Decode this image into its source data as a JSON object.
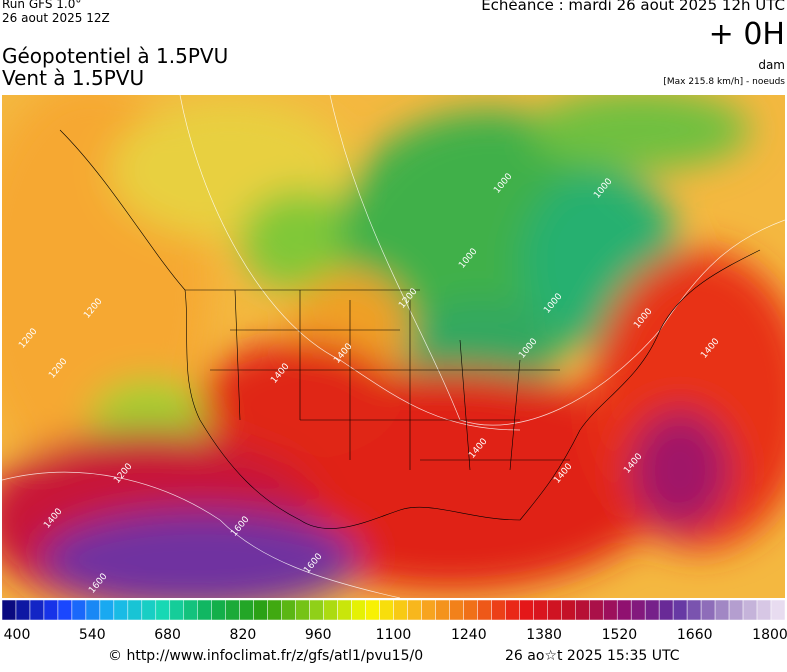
{
  "header": {
    "run": "Run GFS 1.0°",
    "run_date": "26 aout 2025 12Z",
    "title_line1": "Géopotentiel à 1.5PVU",
    "title_line2": "Vent à 1.5PVU",
    "valid": "Echéance : mardi 26 aout 2025 12h UTC",
    "lead": "+ 0H",
    "unit": "dam",
    "wind_note": "[Max 215.8 km/h] - noeuds"
  },
  "map": {
    "contour_labels": [
      "1000",
      "1000",
      "1000",
      "1000",
      "1000",
      "1000",
      "1200",
      "1200",
      "1200",
      "1200",
      "1200",
      "1400",
      "1400",
      "1400",
      "1400",
      "1400",
      "1400",
      "1400",
      "1600",
      "1600",
      "1600"
    ]
  },
  "colorbar": {
    "labels": [
      400,
      540,
      680,
      820,
      960,
      1100,
      1240,
      1380,
      1520,
      1660,
      1800
    ],
    "stops": [
      "#0a0a80",
      "#1a3cff",
      "#19b4f0",
      "#17d8b4",
      "#10b050",
      "#2ea010",
      "#90d018",
      "#f8f800",
      "#f8b020",
      "#f07018",
      "#e81818",
      "#c01028",
      "#901070",
      "#6030a0",
      "#a890c8",
      "#e8dcf0"
    ]
  },
  "footer": {
    "source": "© http://www.infoclimat.fr/z/gfs/atl1/pvu15/0",
    "generated": "26 ao☆t 2025 15:35 UTC"
  }
}
